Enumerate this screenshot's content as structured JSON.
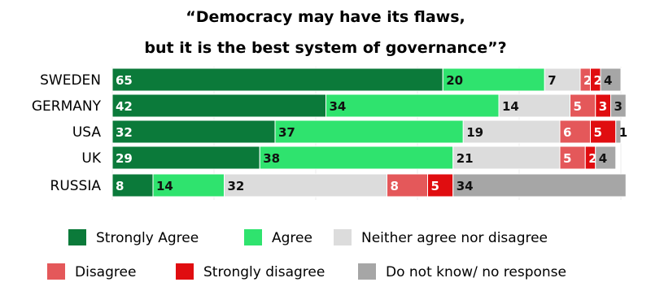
{
  "chart_data": {
    "type": "bar",
    "orientation": "horizontal",
    "stacked": true,
    "title": "“Democracy may have its flaws,",
    "subtitle": "but it is the best system of governance”?",
    "categories": [
      "SWEDEN",
      "GERMANY",
      "USA",
      "UK",
      "RUSSIA"
    ],
    "series": [
      {
        "name": "Strongly Agree",
        "color": "#0b7a3a",
        "values": [
          65,
          42,
          32,
          29,
          8
        ]
      },
      {
        "name": "Agree",
        "color": "#2fe36e",
        "values": [
          20,
          34,
          37,
          38,
          14
        ]
      },
      {
        "name": "Neither agree nor disagree",
        "color": "#dcdcdc",
        "values": [
          7,
          14,
          19,
          21,
          32
        ]
      },
      {
        "name": "Disagree",
        "color": "#e4585a",
        "values": [
          2,
          5,
          6,
          5,
          8
        ]
      },
      {
        "name": "Strongly disagree",
        "color": "#e00d10",
        "values": [
          2,
          3,
          5,
          2,
          5
        ]
      },
      {
        "name": "Do not know/ no response",
        "color": "#a6a6a6",
        "values": [
          4,
          3,
          1,
          4,
          34
        ]
      }
    ],
    "grid": true,
    "legend_position": "bottom"
  }
}
